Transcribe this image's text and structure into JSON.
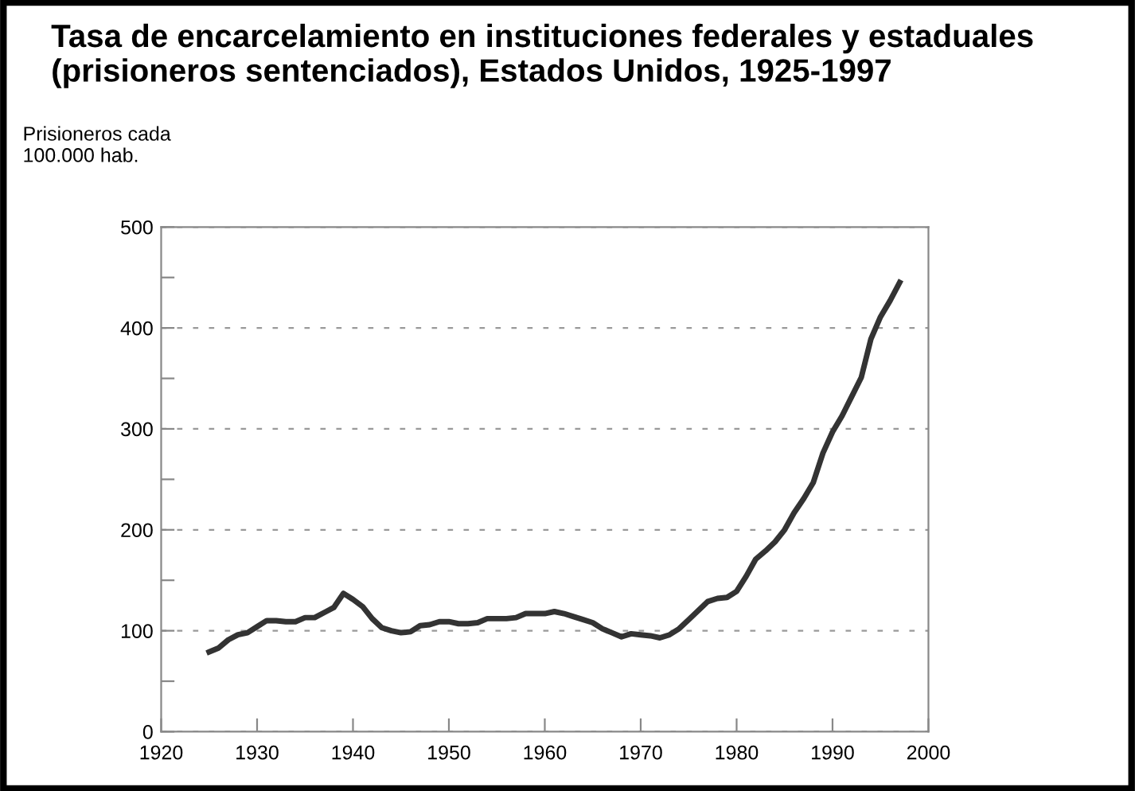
{
  "chart_data": {
    "type": "line",
    "title": "Tasa de encarcelamiento en instituciones federales y estaduales\n(prisioneros sentenciados), Estados Unidos, 1925-1997",
    "ylabel": "Prisioneros cada\n100.000 hab.",
    "x": [
      1925,
      1926,
      1927,
      1928,
      1929,
      1930,
      1931,
      1932,
      1933,
      1934,
      1935,
      1936,
      1937,
      1938,
      1939,
      1940,
      1941,
      1942,
      1943,
      1944,
      1945,
      1946,
      1947,
      1948,
      1949,
      1950,
      1951,
      1952,
      1953,
      1954,
      1955,
      1956,
      1957,
      1958,
      1959,
      1960,
      1961,
      1962,
      1963,
      1964,
      1965,
      1966,
      1967,
      1968,
      1969,
      1970,
      1971,
      1972,
      1973,
      1974,
      1975,
      1976,
      1977,
      1978,
      1979,
      1980,
      1981,
      1982,
      1983,
      1984,
      1985,
      1986,
      1987,
      1988,
      1989,
      1990,
      1991,
      1992,
      1993,
      1994,
      1995,
      1996,
      1997
    ],
    "series": [
      {
        "color": "#333333",
        "values": [
          79,
          83,
          91,
          96,
          98,
          104,
          110,
          110,
          109,
          109,
          113,
          113,
          118,
          123,
          137,
          131,
          124,
          112,
          103,
          100,
          98,
          99,
          105,
          106,
          109,
          109,
          107,
          107,
          108,
          112,
          112,
          112,
          113,
          117,
          117,
          117,
          119,
          117,
          114,
          111,
          108,
          102,
          98,
          94,
          97,
          96,
          95,
          93,
          96,
          102,
          111,
          120,
          129,
          132,
          133,
          139,
          154,
          171,
          179,
          188,
          200,
          217,
          231,
          247,
          276,
          297,
          313,
          332,
          351,
          389,
          411,
          427,
          445
        ]
      }
    ],
    "xlim": [
      1920,
      2000
    ],
    "xticks": [
      1920,
      1930,
      1940,
      1950,
      1960,
      1970,
      1980,
      1990,
      2000
    ],
    "ylim": [
      0,
      500
    ],
    "yticks": [
      0,
      {
        "value": 50,
        "label": null
      },
      100,
      {
        "value": 150,
        "label": null
      },
      200,
      {
        "value": 250,
        "label": null
      },
      300,
      {
        "value": 350,
        "label": null
      },
      400,
      {
        "value": 450,
        "label": null
      },
      500
    ],
    "grid": "y",
    "line_style": "solid",
    "marker": "none",
    "legend": false
  }
}
